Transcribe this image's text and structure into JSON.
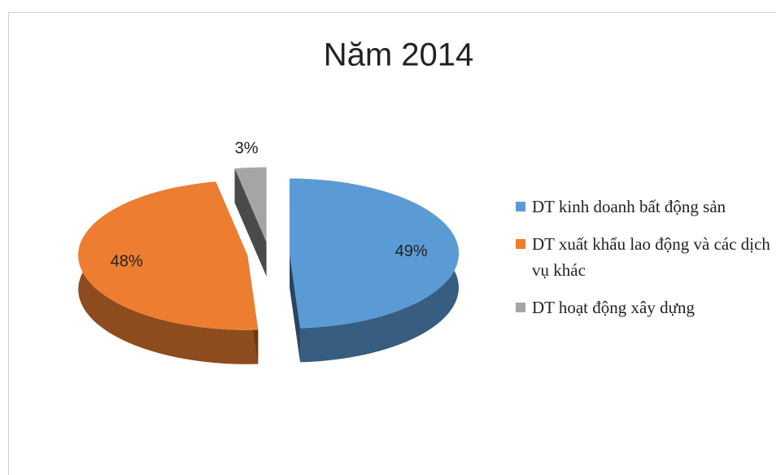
{
  "chart_data": {
    "type": "pie",
    "title": "Năm 2014",
    "categories": [
      "DT kinh doanh bất động sản",
      "DT xuất khẩu lao động và các dịch vụ khác",
      "DT hoạt động xây dựng"
    ],
    "values": [
      49,
      48,
      3
    ],
    "value_labels": [
      "49%",
      "48%",
      "3%"
    ],
    "colors": [
      "#5b9bd5",
      "#ed7d31",
      "#a5a5a5"
    ],
    "legend": "right"
  }
}
